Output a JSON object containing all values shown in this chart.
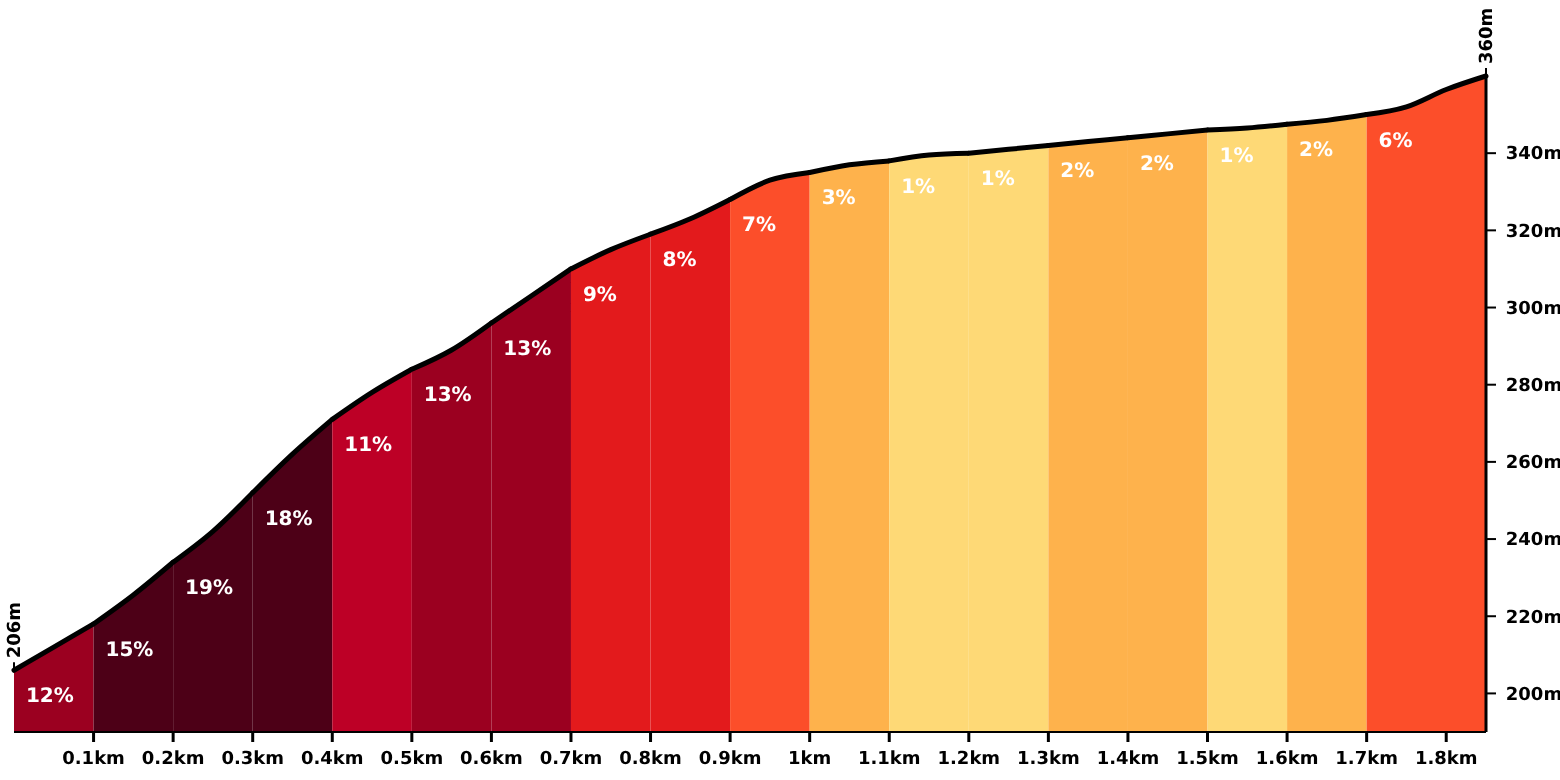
{
  "chart_data": {
    "type": "area",
    "xlim": [
      0,
      1.85
    ],
    "ylim": [
      190,
      360
    ],
    "xticks": [
      {
        "value": 0.1,
        "label": "0.1km"
      },
      {
        "value": 0.2,
        "label": "0.2km"
      },
      {
        "value": 0.3,
        "label": "0.3km"
      },
      {
        "value": 0.4,
        "label": "0.4km"
      },
      {
        "value": 0.5,
        "label": "0.5km"
      },
      {
        "value": 0.6,
        "label": "0.6km"
      },
      {
        "value": 0.7,
        "label": "0.7km"
      },
      {
        "value": 0.8,
        "label": "0.8km"
      },
      {
        "value": 0.9,
        "label": "0.9km"
      },
      {
        "value": 1,
        "label": "1km"
      },
      {
        "value": 1.1,
        "label": "1.1km"
      },
      {
        "value": 1.2,
        "label": "1.2km"
      },
      {
        "value": 1.3,
        "label": "1.3km"
      },
      {
        "value": 1.4,
        "label": "1.4km"
      },
      {
        "value": 1.5,
        "label": "1.5km"
      },
      {
        "value": 1.6,
        "label": "1.6km"
      },
      {
        "value": 1.7,
        "label": "1.7km"
      },
      {
        "value": 1.8,
        "label": "1.8km"
      }
    ],
    "yticks": [
      {
        "value": 200,
        "label": "200m"
      },
      {
        "value": 220,
        "label": "220m"
      },
      {
        "value": 240,
        "label": "240m"
      },
      {
        "value": 260,
        "label": "260m"
      },
      {
        "value": 280,
        "label": "280m"
      },
      {
        "value": 300,
        "label": "300m"
      },
      {
        "value": 320,
        "label": "320m"
      },
      {
        "value": 340,
        "label": "340m"
      }
    ],
    "series": [
      {
        "color": "#9b0020",
        "x": [
          0,
          0.05,
          0.1
        ],
        "values": [
          206,
          212,
          218
        ]
      },
      {
        "color": "#4d0017",
        "x": [
          0.1,
          0.15,
          0.2
        ],
        "values": [
          218,
          225.5,
          234
        ]
      },
      {
        "color": "#4d0017",
        "x": [
          0.2,
          0.25,
          0.3
        ],
        "values": [
          234,
          242,
          252
        ]
      },
      {
        "color": "#4d0017",
        "x": [
          0.3,
          0.35,
          0.4
        ],
        "values": [
          252,
          262,
          271
        ]
      },
      {
        "color": "#bd0026",
        "x": [
          0.4,
          0.45,
          0.5
        ],
        "values": [
          271,
          278,
          284
        ]
      },
      {
        "color": "#9b0020",
        "x": [
          0.5,
          0.55,
          0.6
        ],
        "values": [
          284,
          289,
          296
        ]
      },
      {
        "color": "#9b0020",
        "x": [
          0.6,
          0.65,
          0.7
        ],
        "values": [
          296,
          303,
          310
        ]
      },
      {
        "color": "#e31a1c",
        "x": [
          0.7,
          0.75,
          0.8
        ],
        "values": [
          310,
          315,
          319
        ]
      },
      {
        "color": "#e31a1c",
        "x": [
          0.8,
          0.85,
          0.9
        ],
        "values": [
          319,
          323,
          328
        ]
      },
      {
        "color": "#fc4e2a",
        "x": [
          0.9,
          0.95,
          1
        ],
        "values": [
          328,
          333,
          335
        ]
      },
      {
        "color": "#feb24c",
        "x": [
          1,
          1.05,
          1.1
        ],
        "values": [
          335,
          337,
          338
        ]
      },
      {
        "color": "#fed976",
        "x": [
          1.1,
          1.15,
          1.2
        ],
        "values": [
          338,
          339.5,
          340
        ]
      },
      {
        "color": "#fed976",
        "x": [
          1.2,
          1.25,
          1.3
        ],
        "values": [
          340,
          341,
          342
        ]
      },
      {
        "color": "#feb24c",
        "x": [
          1.3,
          1.35,
          1.4
        ],
        "values": [
          342,
          343,
          344
        ]
      },
      {
        "color": "#feb24c",
        "x": [
          1.4,
          1.45,
          1.5
        ],
        "values": [
          344,
          345,
          346
        ]
      },
      {
        "color": "#fed976",
        "x": [
          1.5,
          1.55,
          1.6
        ],
        "values": [
          346,
          346.5,
          347.5
        ]
      },
      {
        "color": "#feb24c",
        "x": [
          1.6,
          1.65,
          1.7
        ],
        "values": [
          347.5,
          348.5,
          350
        ]
      },
      {
        "color": "#fc4e2a",
        "x": [
          1.7,
          1.75,
          1.8,
          1.85
        ],
        "values": [
          350,
          352,
          356.5,
          360
        ]
      }
    ],
    "annotations": [
      {
        "text": "12%",
        "x": 0.01,
        "y": 206
      },
      {
        "text": "15%",
        "x": 0.11,
        "y": 218
      },
      {
        "text": "19%",
        "x": 0.21,
        "y": 234
      },
      {
        "text": "18%",
        "x": 0.31,
        "y": 252
      },
      {
        "text": "11%",
        "x": 0.41,
        "y": 271
      },
      {
        "text": "13%",
        "x": 0.51,
        "y": 284
      },
      {
        "text": "13%",
        "x": 0.61,
        "y": 296
      },
      {
        "text": "9%",
        "x": 0.71,
        "y": 310
      },
      {
        "text": "8%",
        "x": 0.81,
        "y": 319
      },
      {
        "text": "7%",
        "x": 0.91,
        "y": 328
      },
      {
        "text": "3%",
        "x": 1.01,
        "y": 335
      },
      {
        "text": "1%",
        "x": 1.11,
        "y": 338
      },
      {
        "text": "1%",
        "x": 1.21,
        "y": 340
      },
      {
        "text": "2%",
        "x": 1.31,
        "y": 342
      },
      {
        "text": "2%",
        "x": 1.41,
        "y": 344
      },
      {
        "text": "1%",
        "x": 1.51,
        "y": 346
      },
      {
        "text": "2%",
        "x": 1.61,
        "y": 347.5
      },
      {
        "text": "6%",
        "x": 1.71,
        "y": 350
      },
      {
        "text": "206m",
        "x": 0,
        "y": 206
      },
      {
        "text": "360m",
        "x": 1.85,
        "y": 360
      }
    ]
  }
}
